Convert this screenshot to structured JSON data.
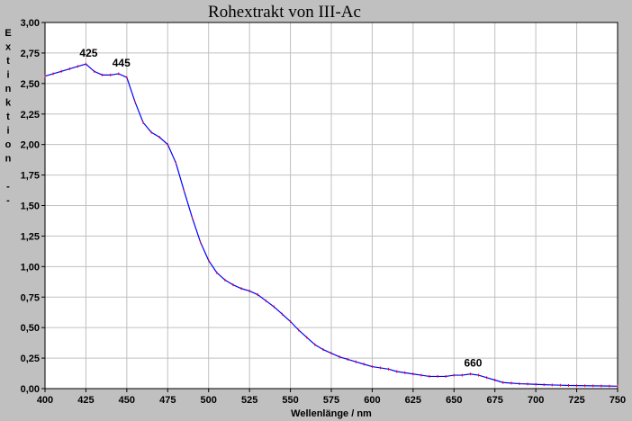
{
  "colors": {
    "background": "#c0c0c0",
    "plot_background": "#ffffff",
    "grid": "#c0c0c0",
    "line": "#0000ff",
    "markers": "#ff0000"
  },
  "chart_data": {
    "type": "line",
    "title": "Rohextrakt von III-Ac",
    "xlabel": "Wellenlänge / nm",
    "ylabel": "Extinktion --",
    "xlim": [
      400,
      750
    ],
    "ylim": [
      0,
      3
    ],
    "grid": true,
    "xticks": [
      400,
      425,
      450,
      475,
      500,
      525,
      550,
      575,
      600,
      625,
      650,
      675,
      700,
      725,
      750
    ],
    "xtick_labels": [
      "400",
      "425",
      "450",
      "475",
      "500",
      "525",
      "550",
      "575",
      "600",
      "625",
      "650",
      "675",
      "700",
      "725",
      "750"
    ],
    "yticks": [
      0,
      0.25,
      0.5,
      0.75,
      1.0,
      1.25,
      1.5,
      1.75,
      2.0,
      2.25,
      2.5,
      2.75,
      3.0
    ],
    "ytick_labels": [
      "0,00",
      "0,25",
      "0,50",
      "0,75",
      "1,00",
      "1,25",
      "1,50",
      "1,75",
      "2,00",
      "2,25",
      "2,50",
      "2,75",
      "3,00"
    ],
    "annotations": [
      {
        "text": "425",
        "x": 425,
        "y": 2.66
      },
      {
        "text": "445",
        "x": 445,
        "y": 2.58
      },
      {
        "text": "660",
        "x": 660,
        "y": 0.12
      }
    ],
    "series": [
      {
        "x": [
          400,
          405,
          410,
          415,
          420,
          425,
          430,
          435,
          440,
          445,
          450,
          455,
          460,
          465,
          470,
          475,
          480,
          485,
          490,
          495,
          500,
          505,
          510,
          515,
          520,
          525,
          530,
          535,
          540,
          545,
          550,
          555,
          560,
          565,
          570,
          575,
          580,
          585,
          590,
          595,
          600,
          605,
          610,
          615,
          620,
          625,
          630,
          635,
          640,
          645,
          650,
          655,
          660,
          665,
          670,
          675,
          680,
          685,
          690,
          695,
          700,
          705,
          710,
          715,
          720,
          725,
          730,
          735,
          740,
          745,
          750
        ],
        "y": [
          2.56,
          2.58,
          2.6,
          2.62,
          2.64,
          2.66,
          2.6,
          2.57,
          2.57,
          2.58,
          2.55,
          2.35,
          2.18,
          2.1,
          2.06,
          2.0,
          1.85,
          1.62,
          1.4,
          1.2,
          1.05,
          0.95,
          0.89,
          0.85,
          0.82,
          0.8,
          0.77,
          0.72,
          0.67,
          0.61,
          0.55,
          0.48,
          0.42,
          0.36,
          0.32,
          0.29,
          0.26,
          0.24,
          0.22,
          0.2,
          0.18,
          0.17,
          0.16,
          0.14,
          0.13,
          0.12,
          0.11,
          0.1,
          0.1,
          0.1,
          0.11,
          0.11,
          0.12,
          0.11,
          0.09,
          0.07,
          0.05,
          0.045,
          0.04,
          0.038,
          0.035,
          0.032,
          0.03,
          0.028,
          0.026,
          0.025,
          0.024,
          0.023,
          0.022,
          0.021,
          0.02
        ]
      }
    ]
  }
}
